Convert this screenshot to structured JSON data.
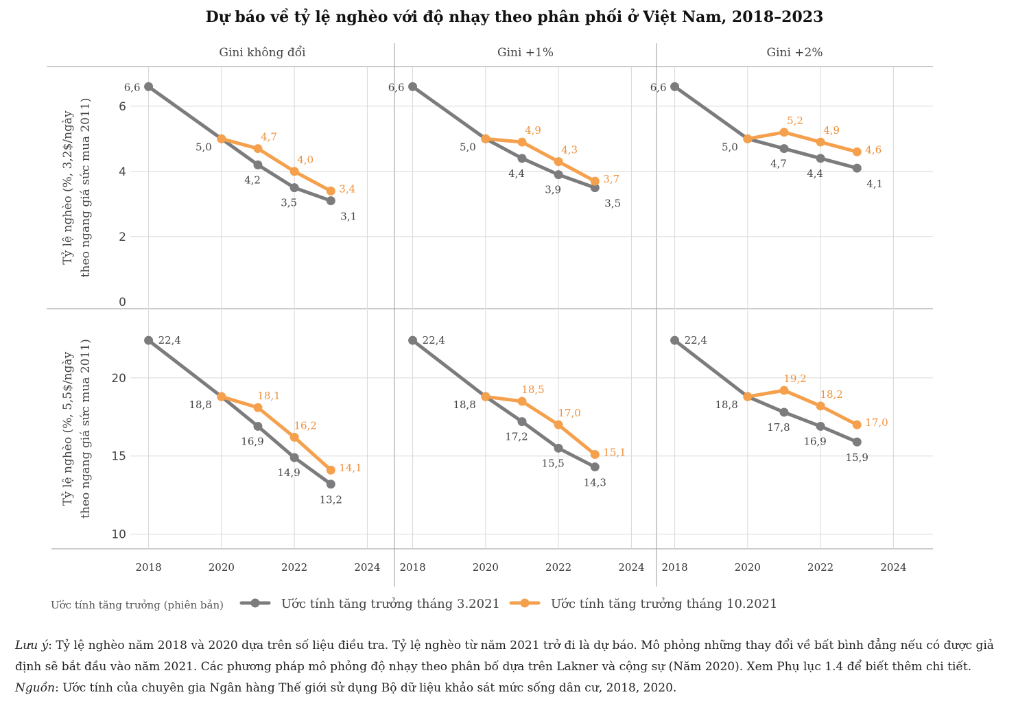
{
  "title": "Dự báo về tỷ lệ nghèo với độ nhạy theo phân phối ở Việt Nam, 2018–2023",
  "legend": {
    "title": "Ước tính tăng trưởng (phiên bản)",
    "items": [
      {
        "label": "Ước tính tăng trưởng tháng 3.2021",
        "color": "#7c7c7e"
      },
      {
        "label": "Ước tính tăng trưởng tháng 10.2021",
        "color": "#f5a04c"
      }
    ]
  },
  "notes": {
    "note_label": "Lưu ý",
    "note_text": ": Tỷ lệ nghèo năm 2018 và 2020 dựa trên số liệu điều tra. Tỷ lệ nghèo từ năm 2021 trở đi là dự báo. Mô phỏng những thay đổi về bất bình đẳng nếu có được giả định sẽ bắt đầu vào năm 2021. Các phương pháp mô phỏng độ nhạy theo phân bố dựa trên Lakner và cộng sự (Năm 2020). Xem Phụ lục 1.4 để biết thêm chi tiết.",
    "source_label": "Nguồn",
    "source_text": ": Ước tính của chuyên gia Ngân hàng Thế giới sử dụng Bộ dữ liệu khảo sát mức sống dân cư, 2018, 2020."
  },
  "chart_data": {
    "type": "line",
    "columns": [
      "Gini không đổi",
      "Gini +1%",
      "Gini +2%"
    ],
    "xticks": [
      2018,
      2020,
      2022,
      2024
    ],
    "xlim": [
      2017.5,
      2024.5
    ],
    "colors": {
      "march": "#7c7c7e",
      "october": "#f5a04c"
    },
    "rows": [
      {
        "ylabel": [
          "Tỷ lệ nghèo (%, 3,2$/ngày",
          "theo ngang giá sức mua 2011)"
        ],
        "ylim": [
          0,
          6.9
        ],
        "yticks": [
          0,
          2,
          4,
          6
        ],
        "panels": [
          {
            "march": {
              "x": [
                2018,
                2020,
                2021,
                2022,
                2023
              ],
              "y": [
                6.6,
                5.0,
                4.2,
                3.5,
                3.1
              ],
              "labels": [
                "6,6",
                "5,0",
                "4,2",
                "3,5",
                "3,1"
              ]
            },
            "october": {
              "x": [
                2020,
                2021,
                2022,
                2023
              ],
              "y": [
                5.0,
                4.7,
                4.0,
                3.4
              ],
              "labels": [
                "",
                "4,7",
                "4,0",
                "3,4"
              ]
            }
          },
          {
            "march": {
              "x": [
                2018,
                2020,
                2021,
                2022,
                2023
              ],
              "y": [
                6.6,
                5.0,
                4.4,
                3.9,
                3.5
              ],
              "labels": [
                "6,6",
                "5,0",
                "4,4",
                "3,9",
                "3,5"
              ]
            },
            "october": {
              "x": [
                2020,
                2021,
                2022,
                2023
              ],
              "y": [
                5.0,
                4.9,
                4.3,
                3.7
              ],
              "labels": [
                "",
                "4,9",
                "4,3",
                "3,7"
              ]
            }
          },
          {
            "march": {
              "x": [
                2018,
                2020,
                2021,
                2022,
                2023
              ],
              "y": [
                6.6,
                5.0,
                4.7,
                4.4,
                4.1
              ],
              "labels": [
                "6,6",
                "5,0",
                "4,7",
                "4,4",
                "4,1"
              ]
            },
            "october": {
              "x": [
                2020,
                2021,
                2022,
                2023
              ],
              "y": [
                5.0,
                5.2,
                4.9,
                4.6
              ],
              "labels": [
                "",
                "5,2",
                "4,9",
                "4,6"
              ]
            }
          }
        ]
      },
      {
        "ylabel": [
          "Tỷ lệ nghèo (%, 5,5$/ngày",
          "theo ngang giá sức mua 2011)"
        ],
        "ylim": [
          9.5,
          23.9
        ],
        "yticks": [
          10,
          15,
          20
        ],
        "panels": [
          {
            "march": {
              "x": [
                2018,
                2020,
                2021,
                2022,
                2023
              ],
              "y": [
                22.4,
                18.8,
                16.9,
                14.9,
                13.2
              ],
              "labels": [
                "22,4",
                "18,8",
                "16,9",
                "14,9",
                "13,2"
              ]
            },
            "october": {
              "x": [
                2020,
                2021,
                2022,
                2023
              ],
              "y": [
                18.8,
                18.1,
                16.2,
                14.1
              ],
              "labels": [
                "",
                "18,1",
                "16,2",
                "14,1"
              ]
            }
          },
          {
            "march": {
              "x": [
                2018,
                2020,
                2021,
                2022,
                2023
              ],
              "y": [
                22.4,
                18.8,
                17.2,
                15.5,
                14.3
              ],
              "labels": [
                "22,4",
                "18,8",
                "17,2",
                "15,5",
                "14,3"
              ]
            },
            "october": {
              "x": [
                2020,
                2021,
                2022,
                2023
              ],
              "y": [
                18.8,
                18.5,
                17.0,
                15.1
              ],
              "labels": [
                "",
                "18,5",
                "17,0",
                "15,1"
              ]
            }
          },
          {
            "march": {
              "x": [
                2018,
                2020,
                2021,
                2022,
                2023
              ],
              "y": [
                22.4,
                18.8,
                17.8,
                16.9,
                15.9
              ],
              "labels": [
                "22,4",
                "18,8",
                "17,8",
                "16,9",
                "15,9"
              ]
            },
            "october": {
              "x": [
                2020,
                2021,
                2022,
                2023
              ],
              "y": [
                18.8,
                19.2,
                18.2,
                17.0
              ],
              "labels": [
                "",
                "19,2",
                "18,2",
                "17,0"
              ]
            }
          }
        ]
      }
    ]
  }
}
